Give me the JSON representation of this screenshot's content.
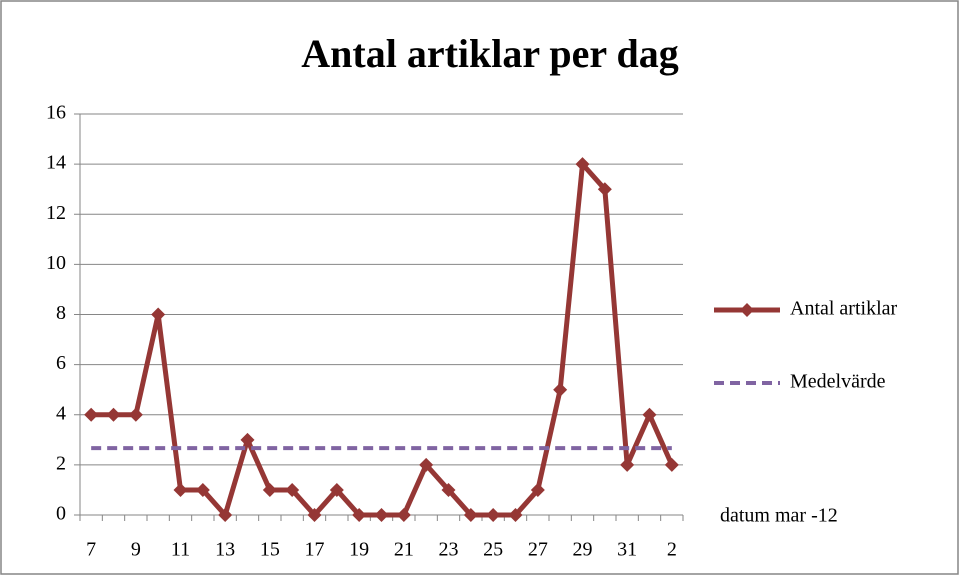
{
  "chart_data": {
    "type": "line",
    "title": "Antal artiklar per dag",
    "x_label": "datum mar -12",
    "categories": [
      "7",
      null,
      "9",
      null,
      "11",
      null,
      "13",
      null,
      "15",
      null,
      "17",
      null,
      "19",
      null,
      "21",
      null,
      "23",
      null,
      "25",
      null,
      "27",
      null,
      "29",
      null,
      "31",
      null,
      "2"
    ],
    "series": [
      {
        "name": "Antal artiklar",
        "color": "#953735",
        "values": [
          4,
          4,
          4,
          8,
          1,
          1,
          0,
          3,
          1,
          1,
          0,
          1,
          0,
          0,
          0,
          2,
          1,
          0,
          0,
          0,
          1,
          5,
          14,
          13,
          2,
          4,
          2
        ]
      },
      {
        "name": "Medelvärde",
        "color": "#8064a2",
        "dashed": true,
        "values": [
          2.67,
          2.67,
          2.67,
          2.67,
          2.67,
          2.67,
          2.67,
          2.67,
          2.67,
          2.67,
          2.67,
          2.67,
          2.67,
          2.67,
          2.67,
          2.67,
          2.67,
          2.67,
          2.67,
          2.67,
          2.67,
          2.67,
          2.67,
          2.67,
          2.67,
          2.67,
          2.67
        ]
      }
    ],
    "ylim": [
      0,
      16
    ],
    "yticks": [
      0,
      2,
      4,
      6,
      8,
      10,
      12,
      14,
      16
    ],
    "grid": true,
    "legend": "right"
  }
}
